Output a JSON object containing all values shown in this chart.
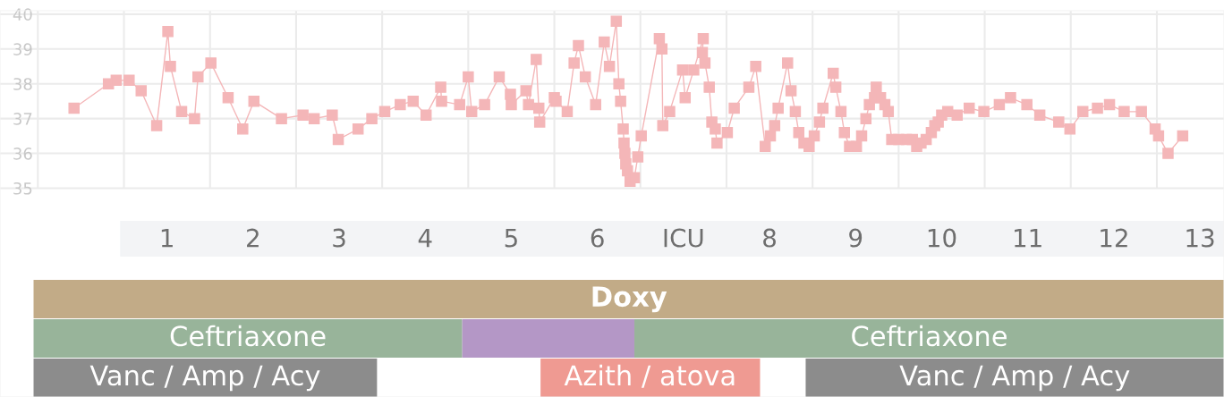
{
  "chart_data": {
    "type": "line",
    "marker": "square",
    "line_style": "solid",
    "grid": true,
    "xlim": [
      -1.44,
      12.78
    ],
    "ylim": [
      29.0,
      40.1
    ],
    "yticks": [
      35,
      36,
      37,
      38,
      39,
      40
    ],
    "xticks": [
      {
        "value": 0.5,
        "label": "1"
      },
      {
        "value": 1.5,
        "label": "2"
      },
      {
        "value": 2.5,
        "label": "3"
      },
      {
        "value": 3.5,
        "label": "4"
      },
      {
        "value": 4.5,
        "label": "5"
      },
      {
        "value": 5.5,
        "label": "6"
      },
      {
        "value": 6.5,
        "label": "ICU"
      },
      {
        "value": 7.5,
        "label": "8"
      },
      {
        "value": 8.5,
        "label": "9"
      },
      {
        "value": 9.5,
        "label": "10"
      },
      {
        "value": 10.5,
        "label": "11"
      },
      {
        "value": 11.5,
        "label": "12"
      },
      {
        "value": 12.5,
        "label": "13"
      }
    ],
    "series": [
      {
        "color": "#f4b6b8",
        "x": [
          -0.58,
          -0.18,
          -0.09,
          0.06,
          0.2,
          0.38,
          0.51,
          0.54,
          0.67,
          0.82,
          0.86,
          1.01,
          1.21,
          1.38,
          1.51,
          1.83,
          2.08,
          2.21,
          2.42,
          2.49,
          2.72,
          2.88,
          3.03,
          3.21,
          3.36,
          3.51,
          3.68,
          3.69,
          3.9,
          4.0,
          4.04,
          4.19,
          4.36,
          4.49,
          4.5,
          4.67,
          4.7,
          4.79,
          4.82,
          4.83,
          5.0,
          5.02,
          5.15,
          5.23,
          5.28,
          5.36,
          5.48,
          5.58,
          5.64,
          5.72,
          5.75,
          5.77,
          5.8,
          5.81,
          5.82,
          5.83,
          5.85,
          5.88,
          5.93,
          5.97,
          6.01,
          6.22,
          6.25,
          6.26,
          6.34,
          6.49,
          6.52,
          6.62,
          6.73,
          6.72,
          6.75,
          6.8,
          6.83,
          6.87,
          6.89,
          7.01,
          7.09,
          7.26,
          7.34,
          7.45,
          7.51,
          7.56,
          7.6,
          7.71,
          7.75,
          7.8,
          7.84,
          7.9,
          7.96,
          8.02,
          8.08,
          8.12,
          8.24,
          8.27,
          8.33,
          8.37,
          8.43,
          8.51,
          8.57,
          8.62,
          8.66,
          8.72,
          8.74,
          8.79,
          8.84,
          8.88,
          8.92,
          9.0,
          9.09,
          9.16,
          9.21,
          9.26,
          9.32,
          9.38,
          9.42,
          9.46,
          9.5,
          9.57,
          9.68,
          9.82,
          9.99,
          10.17,
          10.3,
          10.49,
          10.64,
          10.86,
          10.99,
          11.14,
          11.31,
          11.45,
          11.62,
          11.82,
          11.98,
          12.02,
          12.13,
          12.3
        ],
        "values": [
          37.3,
          38.0,
          38.1,
          38.1,
          37.8,
          36.8,
          39.5,
          38.5,
          37.2,
          37.0,
          38.2,
          38.6,
          37.6,
          36.7,
          37.5,
          37.0,
          37.1,
          37.0,
          37.1,
          36.4,
          36.7,
          37.0,
          37.2,
          37.4,
          37.5,
          37.1,
          37.9,
          37.5,
          37.4,
          38.2,
          37.2,
          37.4,
          38.2,
          37.7,
          37.4,
          37.8,
          37.4,
          38.7,
          37.3,
          36.9,
          37.6,
          37.5,
          37.2,
          38.6,
          39.1,
          38.2,
          37.4,
          39.2,
          38.5,
          39.8,
          38.0,
          37.5,
          36.7,
          36.3,
          36.0,
          35.7,
          35.5,
          35.2,
          35.3,
          35.9,
          36.5,
          39.3,
          39.0,
          36.8,
          37.2,
          38.4,
          37.6,
          38.4,
          39.3,
          38.9,
          38.6,
          37.9,
          36.9,
          36.7,
          36.3,
          36.6,
          37.3,
          37.9,
          38.5,
          36.2,
          36.5,
          36.8,
          37.3,
          38.6,
          37.8,
          37.2,
          36.6,
          36.3,
          36.2,
          36.5,
          36.9,
          37.3,
          38.3,
          37.9,
          37.2,
          36.6,
          36.2,
          36.2,
          36.5,
          37.0,
          37.4,
          37.6,
          37.9,
          37.6,
          37.4,
          37.2,
          36.4,
          36.4,
          36.4,
          36.4,
          36.2,
          36.3,
          36.4,
          36.6,
          36.8,
          36.9,
          37.1,
          37.2,
          37.1,
          37.3,
          37.2,
          37.4,
          37.6,
          37.4,
          37.1,
          36.9,
          36.7,
          37.2,
          37.3,
          37.4,
          37.2,
          37.2,
          36.7,
          36.5,
          36.0,
          36.5
        ]
      }
    ],
    "bands": [
      {
        "axis": "x",
        "from": -1.05,
        "to": 12.78,
        "label": "Doxy",
        "color": "#c2ab87"
      },
      {
        "axis": "x",
        "from": -1.05,
        "to": 3.93,
        "label": "Ceftriaxone",
        "color": "#98b49a"
      },
      {
        "axis": "x",
        "from": 3.93,
        "to": 5.93,
        "label": null,
        "color": "#b497c6"
      },
      {
        "axis": "x",
        "from": 5.93,
        "to": 12.78,
        "label": "Ceftriaxone",
        "color": "#98b49a"
      },
      {
        "axis": "x",
        "from": -1.05,
        "to": 2.94,
        "label": "Vanc / Amp / Acy",
        "color": "#8c8c8c"
      },
      {
        "axis": "x",
        "from": 4.84,
        "to": 7.39,
        "label": "Azith / atova",
        "color": "#ef9a92"
      },
      {
        "axis": "x",
        "from": 7.92,
        "to": 12.78,
        "label": "Vanc / Amp / Acy",
        "color": "#8c8c8c"
      }
    ]
  }
}
